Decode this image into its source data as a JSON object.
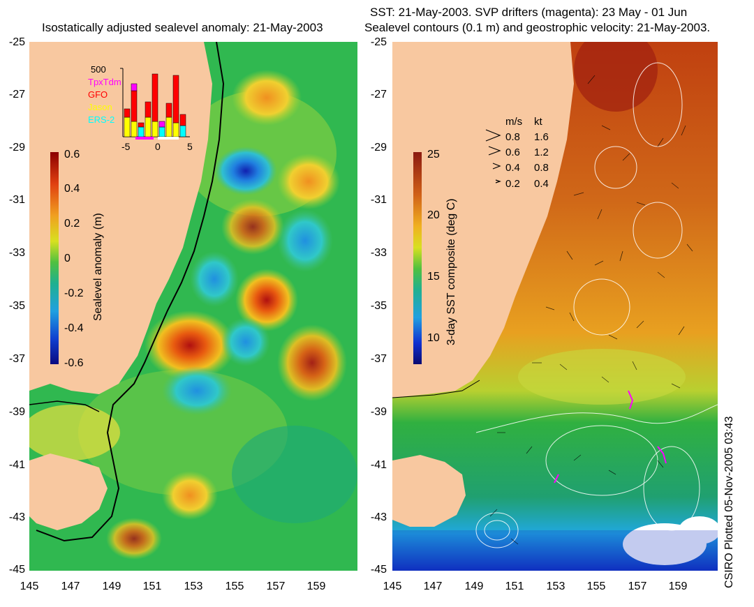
{
  "left_panel": {
    "title": "Isostatically adjusted sealevel anomaly: 21-May-2003",
    "y_ticks": [
      "-25",
      "-27",
      "-29",
      "-31",
      "-33",
      "-35",
      "-37",
      "-39",
      "-41",
      "-43",
      "-45"
    ],
    "x_ticks": [
      "145",
      "147",
      "149",
      "151",
      "153",
      "155",
      "157",
      "159"
    ],
    "colorbar": {
      "title": "Sealevel anomaly (m)",
      "ticks": [
        "0.6",
        "0.4",
        "0.2",
        "0",
        "-0.2",
        "-0.4",
        "-0.6"
      ]
    },
    "inset": {
      "top_value": "500",
      "x_ticks": [
        "-5",
        "0",
        "5"
      ],
      "legend": [
        {
          "label": "TpxTdm",
          "color": "#ff00ff"
        },
        {
          "label": "GFO",
          "color": "#ff0000"
        },
        {
          "label": "Jason",
          "color": "#ffff00"
        },
        {
          "label": "ERS-2",
          "color": "#00ffff"
        }
      ]
    }
  },
  "right_panel": {
    "title_line1": "SST: 21-May-2003. SVP drifters (magenta): 23 May - 01 Jun",
    "title_line2": "Sealevel contours (0.1 m) and geostrophic velocity: 21-May-2003.",
    "y_ticks": [
      "-25",
      "-27",
      "-29",
      "-31",
      "-33",
      "-35",
      "-37",
      "-39",
      "-41",
      "-43",
      "-45"
    ],
    "x_ticks": [
      "145",
      "147",
      "149",
      "151",
      "153",
      "155",
      "157",
      "159"
    ],
    "colorbar": {
      "title": "3-day SST composite (deg C)",
      "ticks": [
        "25",
        "20",
        "15",
        "10"
      ]
    },
    "speed_legend": {
      "header_ms": "m/s",
      "header_kt": "kt",
      "rows": [
        {
          "ms": "0.8",
          "kt": "1.6"
        },
        {
          "ms": "0.6",
          "kt": "1.2"
        },
        {
          "ms": "0.4",
          "kt": "0.8"
        },
        {
          "ms": "0.2",
          "kt": "0.4"
        }
      ]
    }
  },
  "credit": "CSIRO Plotted 05-Nov-2005 03:43",
  "colors": {
    "land": "#f8c8a0",
    "ocean_green": "#28b84a",
    "coast": "#000000"
  }
}
